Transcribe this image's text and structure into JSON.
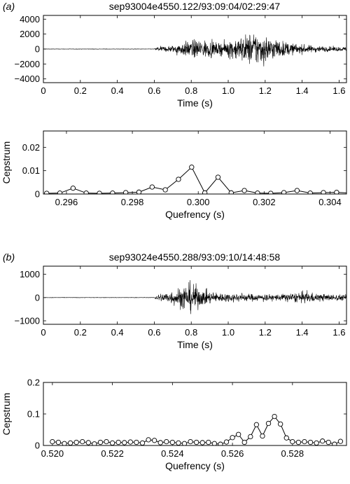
{
  "chart_data": [
    {
      "type": "line",
      "panel_label": "(a)",
      "title": "sep93004e4550.122/93:09:04/02:29:47",
      "xlabel": "Time (s)",
      "ylabel": "",
      "xlim": [
        0,
        1.64
      ],
      "ylim": [
        -4500,
        4500
      ],
      "xticks": [
        0,
        0.2,
        0.4,
        0.6,
        0.8,
        1.0,
        1.2,
        1.4,
        1.6
      ],
      "xtick_labels": [
        "0",
        "0.2",
        "0.4",
        "0.6",
        "0.8",
        "1.0",
        "1.2",
        "1.4",
        "1.6"
      ],
      "yticks": [
        4000,
        2000,
        0,
        -2000,
        -4000
      ],
      "ytick_labels": [
        "4000",
        "2000",
        "0",
        "−2000",
        "−4000"
      ],
      "grid": false,
      "signal_onset_s": 0.6,
      "envelope": [
        [
          0.0,
          40
        ],
        [
          0.6,
          40
        ],
        [
          0.61,
          400
        ],
        [
          0.7,
          700
        ],
        [
          0.78,
          1600
        ],
        [
          0.85,
          2000
        ],
        [
          0.95,
          1100
        ],
        [
          1.02,
          2000
        ],
        [
          1.08,
          2600
        ],
        [
          1.14,
          3500
        ],
        [
          1.2,
          2700
        ],
        [
          1.28,
          1700
        ],
        [
          1.35,
          1100
        ],
        [
          1.45,
          700
        ],
        [
          1.55,
          500
        ],
        [
          1.64,
          400
        ]
      ]
    },
    {
      "type": "line",
      "markers": "circle",
      "title": "",
      "xlabel": "Quefrency (s)",
      "ylabel": "Cepstrum",
      "xlim": [
        0.2953,
        0.3045
      ],
      "ylim": [
        0,
        0.027
      ],
      "xticks": [
        0.296,
        0.298,
        0.3,
        0.302,
        0.304
      ],
      "xtick_labels": [
        "0.296",
        "0.298",
        "0.300",
        "0.302",
        "0.304"
      ],
      "yticks": [
        0,
        0.01,
        0.02
      ],
      "ytick_labels": [
        "0",
        "0.01",
        "0.02"
      ],
      "grid": false,
      "x": [
        0.2954,
        0.2958,
        0.2962,
        0.2966,
        0.297,
        0.2974,
        0.2978,
        0.2982,
        0.2986,
        0.299,
        0.2994,
        0.2998,
        0.3002,
        0.3006,
        0.301,
        0.3014,
        0.3018,
        0.3022,
        0.3026,
        0.303,
        0.3034,
        0.3038,
        0.3042,
        0.3046
      ],
      "values": [
        0.0003,
        0.0004,
        0.0025,
        0.0004,
        0.0003,
        0.0004,
        0.0006,
        0.0008,
        0.003,
        0.0018,
        0.0063,
        0.0115,
        0.0005,
        0.0072,
        0.0005,
        0.0015,
        0.0004,
        0.0003,
        0.0006,
        0.0015,
        0.0004,
        0.0006,
        0.0007,
        0.0004
      ]
    },
    {
      "type": "line",
      "panel_label": "(b)",
      "title": "sep93024e4550.288/93:09:10/14:48:58",
      "xlabel": "Time (s)",
      "ylabel": "",
      "xlim": [
        0,
        1.64
      ],
      "ylim": [
        -1150,
        1350
      ],
      "xticks": [
        0,
        0.2,
        0.4,
        0.6,
        0.8,
        1.0,
        1.2,
        1.4,
        1.6
      ],
      "xtick_labels": [
        "0",
        "0.2",
        "0.4",
        "0.6",
        "0.8",
        "1.0",
        "1.2",
        "1.4",
        "1.6"
      ],
      "yticks": [
        1000,
        0,
        -1000
      ],
      "ytick_labels": [
        "1000",
        "0",
        "−1000"
      ],
      "grid": false,
      "signal_onset_s": 0.6,
      "envelope": [
        [
          0.0,
          12
        ],
        [
          0.6,
          12
        ],
        [
          0.61,
          200
        ],
        [
          0.7,
          450
        ],
        [
          0.76,
          800
        ],
        [
          0.8,
          1000
        ],
        [
          0.86,
          500
        ],
        [
          0.95,
          300
        ],
        [
          1.05,
          260
        ],
        [
          1.15,
          230
        ],
        [
          1.25,
          200
        ],
        [
          1.35,
          300
        ],
        [
          1.4,
          360
        ],
        [
          1.5,
          240
        ],
        [
          1.64,
          180
        ]
      ]
    },
    {
      "type": "line",
      "markers": "circle",
      "title": "",
      "xlabel": "Quefrency (s)",
      "ylabel": "Cepstrum",
      "xlim": [
        0.5197,
        0.5298
      ],
      "ylim": [
        0,
        0.2
      ],
      "xticks": [
        0.52,
        0.522,
        0.524,
        0.526,
        0.528
      ],
      "xtick_labels": [
        "0.520",
        "0.522",
        "0.524",
        "0.526",
        "0.528"
      ],
      "yticks": [
        0,
        0.1,
        0.2
      ],
      "ytick_labels": [
        "0",
        "0.1",
        "0.2"
      ],
      "grid": false,
      "x": [
        0.52,
        0.5202,
        0.5204,
        0.5206,
        0.5208,
        0.521,
        0.5212,
        0.5214,
        0.5216,
        0.5218,
        0.522,
        0.5222,
        0.5224,
        0.5226,
        0.5228,
        0.523,
        0.5232,
        0.5234,
        0.5236,
        0.5238,
        0.524,
        0.5242,
        0.5244,
        0.5246,
        0.5248,
        0.525,
        0.5252,
        0.5254,
        0.5256,
        0.5258,
        0.526,
        0.5262,
        0.5264,
        0.5266,
        0.5268,
        0.527,
        0.5272,
        0.5274,
        0.5276,
        0.5278,
        0.528,
        0.5282,
        0.5284,
        0.5286,
        0.5288,
        0.529,
        0.5292,
        0.5294,
        0.5296
      ],
      "values": [
        0.012,
        0.01,
        0.006,
        0.008,
        0.01,
        0.012,
        0.009,
        0.005,
        0.01,
        0.012,
        0.008,
        0.01,
        0.009,
        0.011,
        0.01,
        0.008,
        0.018,
        0.016,
        0.009,
        0.012,
        0.01,
        0.008,
        0.006,
        0.012,
        0.01,
        0.009,
        0.01,
        0.006,
        0.004,
        0.011,
        0.025,
        0.035,
        0.01,
        0.028,
        0.066,
        0.03,
        0.07,
        0.092,
        0.068,
        0.024,
        0.012,
        0.01,
        0.012,
        0.01,
        0.008,
        0.014,
        0.01,
        0.004,
        0.013
      ]
    }
  ]
}
